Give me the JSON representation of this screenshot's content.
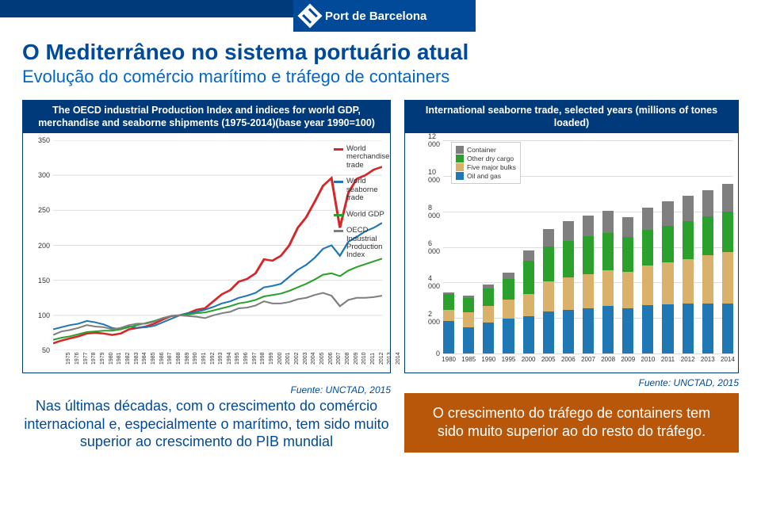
{
  "header": {
    "brand": "Port de Barcelona"
  },
  "title": {
    "main": "O Mediterrâneo no sistema portuário atual",
    "sub": "Evolução do comércio marítimo e tráfego de containers"
  },
  "left_chart": {
    "type": "line",
    "title": "The OECD industrial Production Index and indices for world GDP, merchandise and seaborne shipments (1975-2014)(base year 1990=100)",
    "background_color": "#ffffff",
    "grid_color": "#dddddd",
    "ylim": [
      50,
      350
    ],
    "ytick_step": 50,
    "yticks": [
      50,
      100,
      150,
      200,
      250,
      300,
      350
    ],
    "years": [
      1975,
      1976,
      1977,
      1978,
      1979,
      1980,
      1981,
      1982,
      1983,
      1984,
      1985,
      1986,
      1987,
      1988,
      1989,
      1990,
      1991,
      1992,
      1993,
      1994,
      1995,
      1996,
      1997,
      1998,
      1999,
      2000,
      2001,
      2002,
      2003,
      2004,
      2005,
      2006,
      2007,
      2008,
      2009,
      2010,
      2011,
      2012,
      2013,
      2014
    ],
    "series": [
      {
        "name": "World merchandise trade",
        "color": "#d62728",
        "width": 2.5,
        "values": [
          60,
          64,
          67,
          70,
          74,
          75,
          74,
          72,
          74,
          80,
          82,
          84,
          88,
          94,
          99,
          100,
          103,
          108,
          110,
          120,
          130,
          136,
          148,
          152,
          160,
          180,
          178,
          185,
          200,
          225,
          240,
          262,
          285,
          296,
          225,
          275,
          295,
          300,
          308,
          312
        ]
      },
      {
        "name": "World seaborne trade",
        "color": "#1f77b4",
        "width": 2,
        "values": [
          80,
          83,
          86,
          88,
          92,
          90,
          87,
          82,
          80,
          84,
          82,
          83,
          85,
          90,
          95,
          100,
          103,
          105,
          108,
          112,
          117,
          120,
          125,
          128,
          132,
          140,
          142,
          145,
          155,
          165,
          172,
          182,
          195,
          200,
          185,
          205,
          212,
          220,
          225,
          232
        ]
      },
      {
        "name": "World GDP",
        "color": "#2ca02c",
        "width": 2,
        "values": [
          65,
          68,
          70,
          73,
          76,
          77,
          78,
          78,
          80,
          83,
          86,
          89,
          92,
          96,
          99,
          100,
          101,
          103,
          104,
          107,
          110,
          113,
          117,
          119,
          122,
          127,
          129,
          131,
          135,
          140,
          145,
          151,
          158,
          160,
          156,
          164,
          169,
          173,
          177,
          181
        ]
      },
      {
        "name": "OECD Industrial Production Index",
        "color": "#7f7f7f",
        "width": 2,
        "values": [
          72,
          77,
          79,
          82,
          86,
          84,
          83,
          80,
          82,
          86,
          88,
          88,
          91,
          96,
          99,
          100,
          99,
          98,
          96,
          100,
          103,
          105,
          110,
          111,
          114,
          120,
          117,
          117,
          119,
          123,
          125,
          129,
          132,
          128,
          113,
          122,
          125,
          125,
          126,
          128
        ]
      }
    ],
    "legend": [
      {
        "label": "World merchandise trade",
        "color": "#d62728"
      },
      {
        "label": "World seaborne trade",
        "color": "#1f77b4"
      },
      {
        "label": "World GDP",
        "color": "#2ca02c"
      },
      {
        "label": "OECD Industrial Production Index",
        "color": "#7f7f7f"
      }
    ]
  },
  "right_chart": {
    "type": "stacked-bar",
    "title": "International seaborne trade, selected years (millions of tones loaded)",
    "background_color": "#ffffff",
    "grid_color": "#dddddd",
    "ylim": [
      0,
      12000
    ],
    "ytick_step": 2000,
    "yticks": [
      0,
      2000,
      4000,
      6000,
      8000,
      10000,
      12000
    ],
    "categories": [
      "1980",
      "1985",
      "1990",
      "1995",
      "2000",
      "2005",
      "2006",
      "2007",
      "2008",
      "2009",
      "2010",
      "2011",
      "2012",
      "2013",
      "2014"
    ],
    "segments": [
      {
        "name": "Oil and gas",
        "color": "#1f77b4"
      },
      {
        "name": "Five major bulks",
        "color": "#d9b16a"
      },
      {
        "name": "Other dry cargo",
        "color": "#2ca02c"
      },
      {
        "name": "Container",
        "color": "#7f7f7f"
      }
    ],
    "data": [
      [
        1850,
        650,
        900,
        100
      ],
      [
        1500,
        850,
        800,
        150
      ],
      [
        1750,
        950,
        1000,
        230
      ],
      [
        2000,
        1100,
        1150,
        380
      ],
      [
        2150,
        1250,
        1900,
        600
      ],
      [
        2400,
        1700,
        2000,
        1000
      ],
      [
        2500,
        1850,
        2100,
        1100
      ],
      [
        2600,
        1950,
        2150,
        1200
      ],
      [
        2700,
        2050,
        2150,
        1250
      ],
      [
        2600,
        2050,
        2000,
        1150
      ],
      [
        2750,
        2300,
        2000,
        1300
      ],
      [
        2800,
        2400,
        2100,
        1400
      ],
      [
        2850,
        2550,
        2150,
        1450
      ],
      [
        2850,
        2750,
        2250,
        1500
      ],
      [
        2850,
        2950,
        2300,
        1600
      ]
    ],
    "legend": [
      {
        "label": "Container",
        "color": "#7f7f7f"
      },
      {
        "label": "Other dry cargo",
        "color": "#2ca02c"
      },
      {
        "label": "Five major bulks",
        "color": "#d9b16a"
      },
      {
        "label": "Oil and gas",
        "color": "#1f77b4"
      }
    ]
  },
  "bottom_left": {
    "source": "Fuente: UNCTAD, 2015",
    "text": "Nas últimas décadas, com o crescimento do comércio internacional e, especialmente o marítimo, tem sido muito superior ao crescimento do PIB mundial"
  },
  "bottom_right": {
    "source": "Fuente: UNCTAD, 2015",
    "text": "O crescimento do tráfego de containers tem sido muito superior ao do resto do tráfego."
  }
}
